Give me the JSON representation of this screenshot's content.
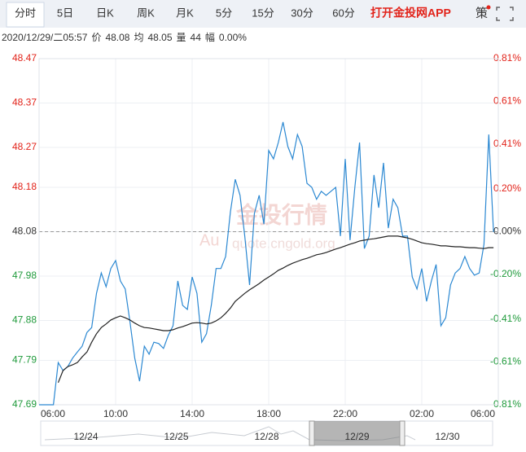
{
  "tabs": [
    "分时",
    "5日",
    "日K",
    "周K",
    "月K",
    "5分",
    "15分",
    "30分",
    "60分"
  ],
  "active_tab": 0,
  "app_link": "打开金投网APP",
  "strategy": "策",
  "info": {
    "datetime": "2020/12/29/二05:57",
    "price_label": "价",
    "price": "48.08",
    "avg_label": "均",
    "avg": "48.05",
    "vol_label": "量",
    "vol": "44",
    "amp_label": "幅",
    "amp": "0.00%"
  },
  "watermark": {
    "title": "金投行情",
    "url": "quote.cngold.org",
    "logo": "Au"
  },
  "chart_data": {
    "type": "line",
    "xlim": [
      0,
      96
    ],
    "xticks": [
      {
        "value": 0,
        "label": "06:00"
      },
      {
        "value": 16,
        "label": "10:00"
      },
      {
        "value": 32,
        "label": "14:00"
      },
      {
        "value": 48,
        "label": "18:00"
      },
      {
        "value": 64,
        "label": "22:00"
      },
      {
        "value": 80,
        "label": "02:00"
      },
      {
        "value": 96,
        "label": "06:00"
      }
    ],
    "ylim": [
      47.69,
      48.47
    ],
    "yticks": [
      47.69,
      47.79,
      47.88,
      47.98,
      48.08,
      48.18,
      48.27,
      48.37,
      48.47
    ],
    "y2lim": [
      -0.81,
      0.81
    ],
    "y2ticks": [
      {
        "value": -0.81,
        "label": "-0.81%"
      },
      {
        "value": -0.61,
        "label": "-0.61%"
      },
      {
        "value": -0.41,
        "label": "-0.41%"
      },
      {
        "value": -0.2,
        "label": "-0.20%"
      },
      {
        "value": 0,
        "label": "0.00%"
      },
      {
        "value": 0.2,
        "label": "0.20%"
      },
      {
        "value": 0.41,
        "label": "0.41%"
      },
      {
        "value": 0.61,
        "label": "0.61%"
      },
      {
        "value": 0.81,
        "label": "0.81%"
      }
    ],
    "grid": true,
    "up_color": "#e2231a",
    "down_color": "#1f9a3b",
    "flat_color": "#333333",
    "series": [
      {
        "color": "#2b88d2",
        "values": [
          47.69,
          47.69,
          47.69,
          47.69,
          47.785,
          47.767,
          47.776,
          47.795,
          47.809,
          47.822,
          47.853,
          47.864,
          47.941,
          47.987,
          47.956,
          47.997,
          48.015,
          47.969,
          47.951,
          47.877,
          47.795,
          47.743,
          47.822,
          47.804,
          47.831,
          47.828,
          47.817,
          47.846,
          47.868,
          47.969,
          47.914,
          47.905,
          47.978,
          47.941,
          47.831,
          47.85,
          47.914,
          47.997,
          47.997,
          48.024,
          48.125,
          48.198,
          48.162,
          48.07,
          47.96,
          48.121,
          48.162,
          48.097,
          48.263,
          48.244,
          48.281,
          48.327,
          48.272,
          48.244,
          48.299,
          48.272,
          48.189,
          48.18,
          48.153,
          48.171,
          48.162,
          48.171,
          48.18,
          48.07,
          48.244,
          48.061,
          48.18,
          48.281,
          48.042,
          48.07,
          48.208,
          48.134,
          48.235,
          48.088,
          48.153,
          48.134,
          48.07,
          48.07,
          47.978,
          47.951,
          47.997,
          47.923,
          47.969,
          48.006,
          47.868,
          47.886,
          47.96,
          47.987,
          47.997,
          48.024,
          47.997,
          47.982,
          47.987,
          48.052,
          48.299,
          48.079
        ]
      },
      {
        "color": "#222222",
        "values": [
          null,
          null,
          null,
          null,
          47.74,
          47.767,
          47.776,
          47.78,
          47.785,
          47.798,
          47.809,
          47.831,
          47.85,
          47.864,
          47.872,
          47.881,
          47.886,
          47.89,
          47.886,
          47.881,
          47.874,
          47.868,
          47.864,
          47.863,
          47.861,
          47.859,
          47.857,
          47.857,
          47.859,
          47.863,
          47.866,
          47.87,
          47.874,
          47.875,
          47.874,
          47.872,
          47.874,
          47.879,
          47.886,
          47.896,
          47.908,
          47.923,
          47.932,
          47.941,
          47.949,
          47.956,
          47.963,
          47.971,
          47.978,
          47.985,
          47.993,
          47.998,
          48.004,
          48.009,
          48.013,
          48.017,
          48.02,
          48.024,
          48.028,
          48.03,
          48.033,
          48.037,
          48.041,
          48.044,
          48.048,
          48.052,
          48.055,
          48.059,
          48.061,
          48.063,
          48.064,
          48.066,
          48.068,
          48.07,
          48.07,
          48.07,
          48.068,
          48.066,
          48.063,
          48.059,
          48.055,
          48.053,
          48.052,
          48.05,
          48.048,
          48.048,
          48.047,
          48.046,
          48.046,
          48.045,
          48.044,
          48.044,
          48.043,
          48.042,
          48.044,
          48.044
        ]
      }
    ]
  },
  "navigator": {
    "dates": [
      "12/24",
      "12/25",
      "12/28",
      "12/29",
      "12/30"
    ],
    "selected": 3
  }
}
